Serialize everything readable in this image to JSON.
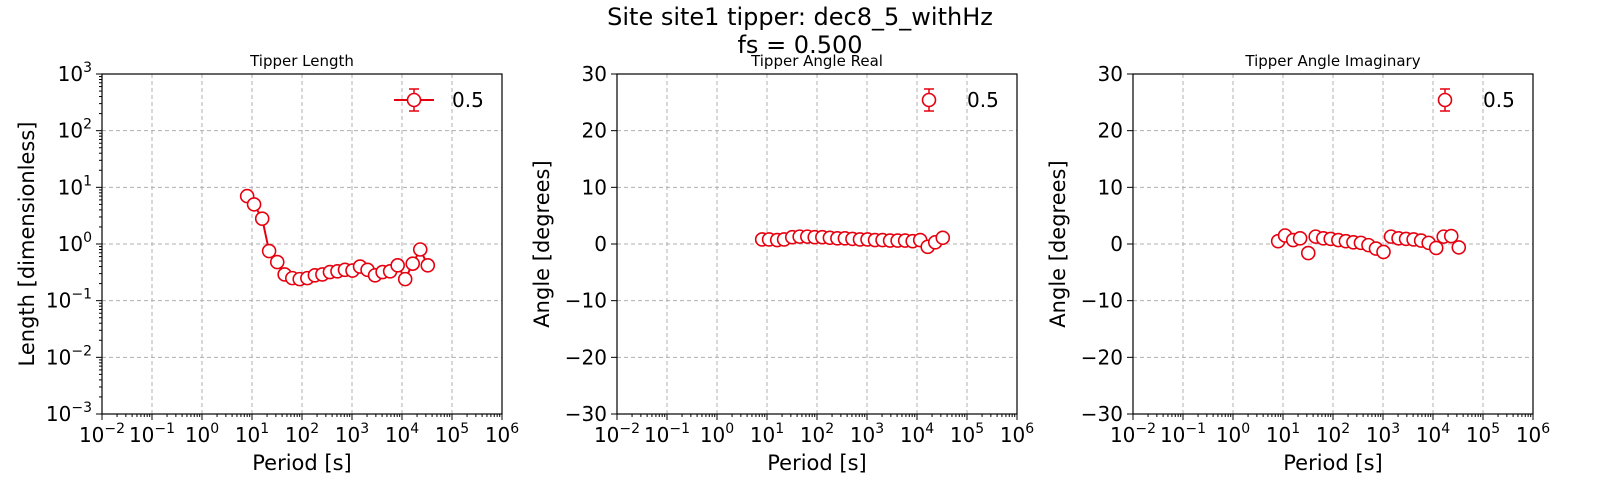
{
  "figure": {
    "title_line1": "Site site1 tipper: dec8_5_withHz",
    "title_line2": "fs = 0.500"
  },
  "colors": {
    "series": "#e6000f",
    "grid": "#b0b0b0",
    "axis": "#000000"
  },
  "chart_data": [
    {
      "type": "line",
      "title": "Tipper Length",
      "xlabel": "Period [s]",
      "ylabel": "Length [dimensionless]",
      "xscale": "log",
      "yscale": "log",
      "xlim": [
        0.01,
        1000000
      ],
      "ylim": [
        0.001,
        1000
      ],
      "xticks": [
        {
          "value": 0.01,
          "base": "10",
          "exp": "−2"
        },
        {
          "value": 0.1,
          "base": "10",
          "exp": "−1"
        },
        {
          "value": 1,
          "base": "10",
          "exp": "0"
        },
        {
          "value": 10,
          "base": "10",
          "exp": "1"
        },
        {
          "value": 100,
          "base": "10",
          "exp": "2"
        },
        {
          "value": 1000,
          "base": "10",
          "exp": "3"
        },
        {
          "value": 10000,
          "base": "10",
          "exp": "4"
        },
        {
          "value": 100000,
          "base": "10",
          "exp": "5"
        },
        {
          "value": 1000000,
          "base": "10",
          "exp": "6"
        }
      ],
      "yticks": [
        {
          "value": 0.001,
          "base": "10",
          "exp": "−3"
        },
        {
          "value": 0.01,
          "base": "10",
          "exp": "−2"
        },
        {
          "value": 0.1,
          "base": "10",
          "exp": "−1"
        },
        {
          "value": 1,
          "base": "10",
          "exp": "0"
        },
        {
          "value": 10,
          "base": "10",
          "exp": "1"
        },
        {
          "value": 100,
          "base": "10",
          "exp": "2"
        },
        {
          "value": 1000,
          "base": "10",
          "exp": "3"
        }
      ],
      "grid": true,
      "legend": {
        "location": "upper right",
        "entries": [
          "0.5"
        ],
        "marker": "open circle with line and error bar"
      },
      "series": [
        {
          "name": "0.5",
          "connected": true,
          "x": [
            8,
            11,
            16,
            22,
            32,
            45,
            64,
            90,
            128,
            181,
            256,
            362,
            512,
            724,
            1024,
            1448,
            2048,
            2896,
            4096,
            5793,
            8192,
            11585,
            16384,
            23170,
            32768
          ],
          "y": [
            7,
            5,
            2.8,
            0.75,
            0.48,
            0.29,
            0.25,
            0.24,
            0.25,
            0.28,
            0.29,
            0.32,
            0.33,
            0.35,
            0.34,
            0.4,
            0.35,
            0.28,
            0.32,
            0.33,
            0.42,
            0.24,
            0.45,
            0.8,
            0.42
          ]
        }
      ]
    },
    {
      "type": "scatter",
      "title": "Tipper Angle Real",
      "xlabel": "Period [s]",
      "ylabel": "Angle [degrees]",
      "xscale": "log",
      "yscale": "linear",
      "xlim": [
        0.01,
        1000000
      ],
      "ylim": [
        -30,
        30
      ],
      "xticks": [
        {
          "value": 0.01,
          "base": "10",
          "exp": "−2"
        },
        {
          "value": 0.1,
          "base": "10",
          "exp": "−1"
        },
        {
          "value": 1,
          "base": "10",
          "exp": "0"
        },
        {
          "value": 10,
          "base": "10",
          "exp": "1"
        },
        {
          "value": 100,
          "base": "10",
          "exp": "2"
        },
        {
          "value": 1000,
          "base": "10",
          "exp": "3"
        },
        {
          "value": 10000,
          "base": "10",
          "exp": "4"
        },
        {
          "value": 100000,
          "base": "10",
          "exp": "5"
        },
        {
          "value": 1000000,
          "base": "10",
          "exp": "6"
        }
      ],
      "yticks": [
        {
          "value": -30,
          "label": "−30"
        },
        {
          "value": -20,
          "label": "−20"
        },
        {
          "value": -10,
          "label": "−10"
        },
        {
          "value": 0,
          "label": "0"
        },
        {
          "value": 10,
          "label": "10"
        },
        {
          "value": 20,
          "label": "20"
        },
        {
          "value": 30,
          "label": "30"
        }
      ],
      "grid": true,
      "legend": {
        "location": "upper right",
        "entries": [
          "0.5"
        ],
        "marker": "open circle with error bar"
      },
      "series": [
        {
          "name": "0.5",
          "connected": false,
          "x": [
            8,
            11,
            16,
            22,
            32,
            45,
            64,
            90,
            128,
            181,
            256,
            362,
            512,
            724,
            1024,
            1448,
            2048,
            2896,
            4096,
            5793,
            8192,
            11585,
            16384,
            23170,
            32768
          ],
          "y": [
            0.8,
            0.8,
            0.7,
            0.8,
            1.2,
            1.3,
            1.3,
            1.2,
            1.2,
            1.1,
            1.0,
            1.0,
            0.9,
            0.8,
            0.8,
            0.7,
            0.7,
            0.6,
            0.6,
            0.6,
            0.5,
            0.7,
            -0.5,
            0.3,
            1.1
          ]
        }
      ]
    },
    {
      "type": "scatter",
      "title": "Tipper Angle Imaginary",
      "xlabel": "Period [s]",
      "ylabel": "Angle [degrees]",
      "xscale": "log",
      "yscale": "linear",
      "xlim": [
        0.01,
        1000000
      ],
      "ylim": [
        -30,
        30
      ],
      "xticks": [
        {
          "value": 0.01,
          "base": "10",
          "exp": "−2"
        },
        {
          "value": 0.1,
          "base": "10",
          "exp": "−1"
        },
        {
          "value": 1,
          "base": "10",
          "exp": "0"
        },
        {
          "value": 10,
          "base": "10",
          "exp": "1"
        },
        {
          "value": 100,
          "base": "10",
          "exp": "2"
        },
        {
          "value": 1000,
          "base": "10",
          "exp": "3"
        },
        {
          "value": 10000,
          "base": "10",
          "exp": "4"
        },
        {
          "value": 100000,
          "base": "10",
          "exp": "5"
        },
        {
          "value": 1000000,
          "base": "10",
          "exp": "6"
        }
      ],
      "yticks": [
        {
          "value": -30,
          "label": "−30"
        },
        {
          "value": -20,
          "label": "−20"
        },
        {
          "value": -10,
          "label": "−10"
        },
        {
          "value": 0,
          "label": "0"
        },
        {
          "value": 10,
          "label": "10"
        },
        {
          "value": 20,
          "label": "20"
        },
        {
          "value": 30,
          "label": "30"
        }
      ],
      "grid": true,
      "legend": {
        "location": "upper right",
        "entries": [
          "0.5"
        ],
        "marker": "open circle with error bar"
      },
      "series": [
        {
          "name": "0.5",
          "connected": false,
          "x": [
            8,
            11,
            16,
            22,
            32,
            45,
            64,
            90,
            128,
            181,
            256,
            362,
            512,
            724,
            1024,
            1448,
            2048,
            2896,
            4096,
            5793,
            8192,
            11585,
            16384,
            23170,
            32768
          ],
          "y": [
            0.5,
            1.5,
            0.7,
            1.0,
            -1.6,
            1.3,
            1.0,
            0.9,
            0.7,
            0.5,
            0.3,
            0.2,
            -0.2,
            -0.8,
            -1.4,
            1.3,
            1.0,
            0.9,
            0.8,
            0.6,
            0.2,
            -0.7,
            1.3,
            1.4,
            -0.6
          ]
        }
      ]
    }
  ]
}
